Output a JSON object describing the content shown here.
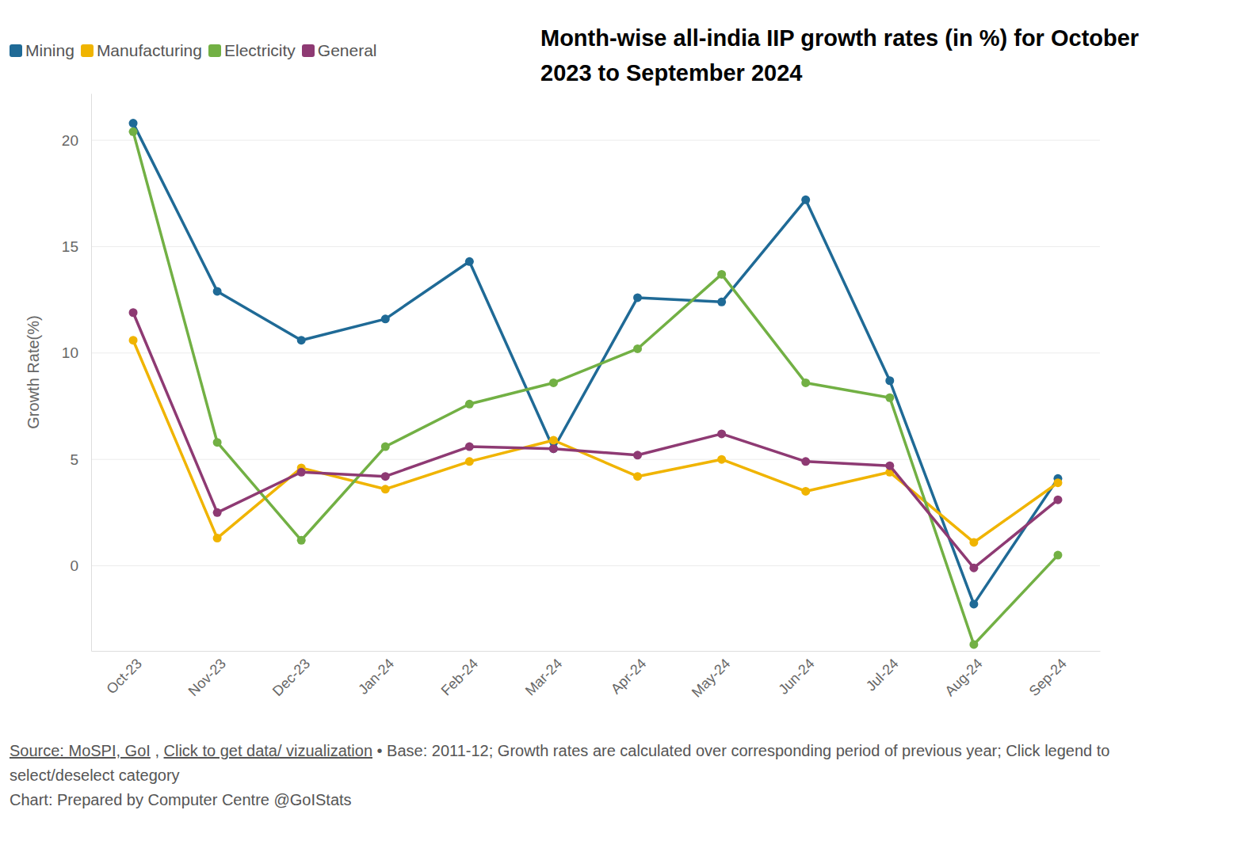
{
  "chart_data": {
    "type": "line",
    "title": "Month-wise all-india IIP growth rates (in %) for October 2023 to September 2024",
    "y_label": "Growth Rate(%)",
    "categories": [
      "Oct-23",
      "Nov-23",
      "Dec-23",
      "Jan-24",
      "Feb-24",
      "Mar-24",
      "Apr-24",
      "May-24",
      "Jun-24",
      "Jul-24",
      "Aug-24",
      "Sep-24"
    ],
    "series": [
      {
        "name": "Mining",
        "color": "#1f6a96",
        "values": [
          20.8,
          12.9,
          10.6,
          11.6,
          14.3,
          5.5,
          12.6,
          12.4,
          17.2,
          8.7,
          -1.8,
          4.1
        ]
      },
      {
        "name": "Manufacturing",
        "color": "#f0b400",
        "values": [
          10.6,
          1.3,
          4.6,
          3.6,
          4.9,
          5.9,
          4.2,
          5.0,
          3.5,
          4.4,
          1.1,
          3.9
        ]
      },
      {
        "name": "Electricity",
        "color": "#72b044",
        "values": [
          20.4,
          5.8,
          1.2,
          5.6,
          7.6,
          8.6,
          10.2,
          13.7,
          8.6,
          7.9,
          -3.7,
          0.5
        ]
      },
      {
        "name": "General",
        "color": "#8e3a73",
        "values": [
          11.9,
          2.5,
          4.4,
          4.2,
          5.6,
          5.5,
          5.2,
          6.2,
          4.9,
          4.7,
          -0.1,
          3.1
        ]
      }
    ],
    "ylim": [
      -4,
      22.2
    ],
    "yticks": [
      0,
      5,
      10,
      15,
      20
    ],
    "grid": true,
    "legend": "top-left",
    "marker": "circle",
    "source": [
      "Source: MoSPI, GoI",
      " , ",
      "Click to get data/ vizualization",
      " • Base: 2011-12; Growth rates are calculated over corresponding period of previous year; Click legend to select/deselect category"
    ],
    "credit": "Chart: Prepared by Computer Centre @GoIStats"
  }
}
